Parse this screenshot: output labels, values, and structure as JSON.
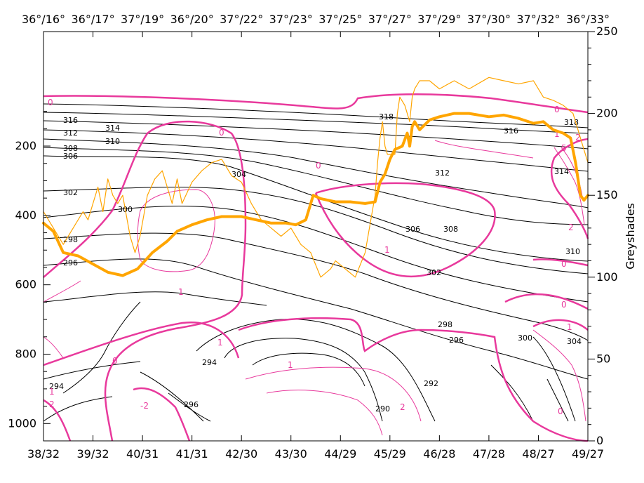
{
  "chart_data": {
    "type": "line",
    "title": "",
    "top_axis_labels": [
      "36°/16°",
      "36°/17°",
      "37°/19°",
      "36°/20°",
      "37°/22°",
      "37°/23°",
      "37°/25°",
      "37°/27°",
      "37°/29°",
      "37°/30°",
      "37°/32°",
      "36°/33°"
    ],
    "bottom_axis_labels": [
      "38/32",
      "39/32",
      "40/31",
      "41/31",
      "42/30",
      "43/30",
      "44/29",
      "45/29",
      "46/28",
      "47/28",
      "48/27",
      "49/27"
    ],
    "left_axis": {
      "ticks": [
        200,
        400,
        600,
        800,
        1000
      ],
      "ylim": [
        1050,
        -130
      ]
    },
    "right_axis": {
      "label": "Greyshades",
      "ticks": [
        0,
        50,
        100,
        150,
        200,
        250
      ],
      "ylim": [
        0,
        250
      ]
    },
    "x_range": [
      0,
      11
    ],
    "series": [
      {
        "style": "thick-orange",
        "x": [
          0,
          0.2,
          0.4,
          0.7,
          1,
          1.3,
          1.6,
          1.9,
          2.2,
          2.5,
          2.7,
          3,
          3.3,
          3.6,
          4,
          4.3,
          4.6,
          4.9,
          5.1,
          5.3,
          5.45,
          5.6,
          5.9,
          6.2,
          6.5,
          6.7,
          6.8,
          6.9,
          7,
          7.1,
          7.25,
          7.35,
          7.4,
          7.45,
          7.5,
          7.6,
          7.8,
          8,
          8.3,
          8.6,
          9,
          9.3,
          9.6,
          9.9,
          10.1,
          10.3,
          10.5,
          10.65,
          10.75,
          10.85,
          10.92,
          11
        ],
        "y": [
          133,
          128,
          115,
          113,
          108,
          103,
          101,
          105,
          115,
          122,
          128,
          132,
          135,
          137,
          137,
          135,
          133,
          133,
          132,
          135,
          150,
          148,
          146,
          146,
          145,
          146,
          158,
          163,
          172,
          178,
          180,
          188,
          180,
          192,
          195,
          190,
          196,
          198,
          200,
          200,
          198,
          199,
          197,
          194,
          195,
          190,
          188,
          185,
          170,
          150,
          147,
          150
        ]
      },
      {
        "style": "thin-orange",
        "x": [
          0,
          0.2,
          0.4,
          0.6,
          0.8,
          0.9,
          1,
          1.1,
          1.2,
          1.3,
          1.4,
          1.5,
          1.6,
          1.75,
          1.85,
          1.95,
          2.1,
          2.25,
          2.4,
          2.5,
          2.6,
          2.7,
          2.8,
          3,
          3.2,
          3.4,
          3.6,
          3.8,
          4,
          4.2,
          4.4,
          4.6,
          4.8,
          5,
          5.2,
          5.4,
          5.6,
          5.8,
          5.9,
          6.1,
          6.3,
          6.5,
          6.7,
          6.75,
          6.8,
          6.85,
          6.9,
          6.95,
          7.0,
          7.1,
          7.15,
          7.2,
          7.3,
          7.4,
          7.45,
          7.5,
          7.6,
          7.8,
          8,
          8.3,
          8.6,
          9,
          9.3,
          9.6,
          9.9,
          10.1,
          10.3,
          10.5,
          10.7,
          10.8,
          10.9,
          11
        ],
        "y": [
          140,
          130,
          120,
          130,
          140,
          135,
          145,
          155,
          140,
          160,
          150,
          145,
          150,
          125,
          115,
          125,
          150,
          160,
          165,
          155,
          145,
          160,
          145,
          158,
          165,
          170,
          172,
          162,
          158,
          145,
          135,
          130,
          125,
          130,
          120,
          115,
          100,
          105,
          110,
          105,
          100,
          115,
          150,
          170,
          185,
          195,
          180,
          175,
          175,
          175,
          200,
          210,
          205,
          195,
          210,
          215,
          220,
          220,
          215,
          220,
          215,
          222,
          220,
          218,
          220,
          210,
          208,
          205,
          200,
          190,
          180,
          170
        ]
      }
    ]
  }
}
